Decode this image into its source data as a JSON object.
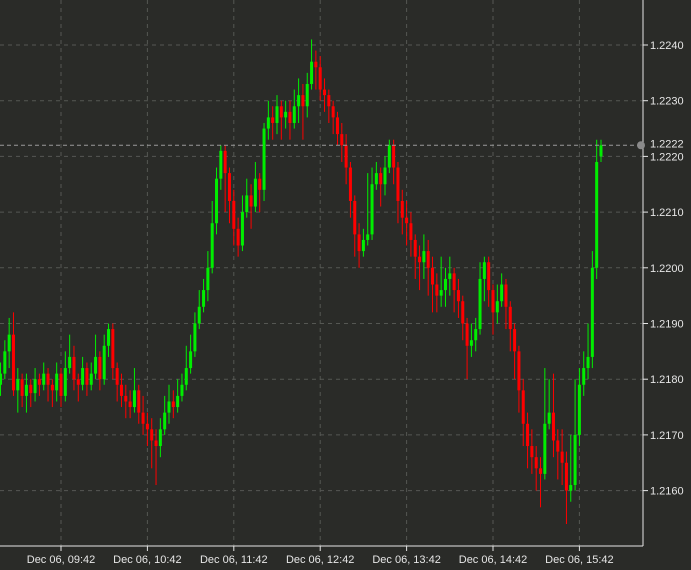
{
  "chart_data": {
    "type": "candlestick",
    "title": "",
    "xlabel": "",
    "ylabel": "",
    "x_start": "Dec 06, 09:00",
    "interval_minutes": 3,
    "ylim": [
      1.215,
      1.2248
    ],
    "grid": true,
    "y_ticks": [
      "1.2160",
      "1.2170",
      "1.2180",
      "1.2190",
      "1.2200",
      "1.2210",
      "1.2220",
      "1.2230",
      "1.2240"
    ],
    "x_ticks": [
      {
        "label": "Dec 06, 09:42",
        "minutes": 42
      },
      {
        "label": "Dec 06, 10:42",
        "minutes": 102
      },
      {
        "label": "Dec 06, 11:42",
        "minutes": 162
      },
      {
        "label": "Dec 06, 12:42",
        "minutes": 222
      },
      {
        "label": "Dec 06, 13:42",
        "minutes": 282
      },
      {
        "label": "Dec 06, 14:42",
        "minutes": 342
      },
      {
        "label": "Dec 06, 15:42",
        "minutes": 402
      }
    ],
    "current_price": {
      "value": 1.2222,
      "label": "1.2222"
    },
    "colors": {
      "up": "#00ee00",
      "down": "#ff0000",
      "background": "#2a2b28",
      "grid": "#555753",
      "axis": "#e6e6e6",
      "current_marker": "#8a8a8a"
    },
    "ohlc": [
      [
        1.2179,
        1.2183,
        1.2177,
        1.2181
      ],
      [
        1.2181,
        1.2187,
        1.218,
        1.2185
      ],
      [
        1.2185,
        1.2191,
        1.2182,
        1.2188
      ],
      [
        1.2188,
        1.2192,
        1.2177,
        1.2178
      ],
      [
        1.2178,
        1.2182,
        1.2174,
        1.218
      ],
      [
        1.218,
        1.2181,
        1.2175,
        1.2177
      ],
      [
        1.2177,
        1.2181,
        1.2174,
        1.2179
      ],
      [
        1.2179,
        1.218,
        1.2175,
        1.21775
      ],
      [
        1.21775,
        1.2182,
        1.2176,
        1.218
      ],
      [
        1.218,
        1.2181,
        1.2177,
        1.2179
      ],
      [
        1.2179,
        1.2183,
        1.2178,
        1.2181
      ],
      [
        1.2181,
        1.2182,
        1.2176,
        1.2179
      ],
      [
        1.2179,
        1.218,
        1.2175,
        1.2178
      ],
      [
        1.2178,
        1.2183,
        1.2176,
        1.2181
      ],
      [
        1.2181,
        1.2182,
        1.2175,
        1.2177
      ],
      [
        1.2177,
        1.2185,
        1.2176,
        1.2182
      ],
      [
        1.2182,
        1.2188,
        1.2181,
        1.2184
      ],
      [
        1.2184,
        1.2186,
        1.2178,
        1.218
      ],
      [
        1.218,
        1.2181,
        1.2176,
        1.2179
      ],
      [
        1.2179,
        1.2184,
        1.2178,
        1.2182
      ],
      [
        1.2182,
        1.2183,
        1.2177,
        1.2179
      ],
      [
        1.2179,
        1.2183,
        1.2178,
        1.2181
      ],
      [
        1.2181,
        1.2188,
        1.218,
        1.2184
      ],
      [
        1.2184,
        1.2185,
        1.2178,
        1.218
      ],
      [
        1.218,
        1.2188,
        1.2179,
        1.2186
      ],
      [
        1.2186,
        1.219,
        1.2184,
        1.2189
      ],
      [
        1.2189,
        1.219,
        1.218,
        1.2182
      ],
      [
        1.2182,
        1.2183,
        1.2176,
        1.2179
      ],
      [
        1.2179,
        1.2181,
        1.2175,
        1.2177
      ],
      [
        1.2177,
        1.2179,
        1.2173,
        1.2176
      ],
      [
        1.2176,
        1.2178,
        1.2173,
        1.2175
      ],
      [
        1.2175,
        1.2182,
        1.2174,
        1.2178
      ],
      [
        1.2178,
        1.2179,
        1.2172,
        1.2174
      ],
      [
        1.2174,
        1.2177,
        1.217,
        1.2172
      ],
      [
        1.2172,
        1.2174,
        1.2168,
        1.2171
      ],
      [
        1.2171,
        1.2173,
        1.2164,
        1.2169
      ],
      [
        1.2169,
        1.2171,
        1.2161,
        1.2168
      ],
      [
        1.2168,
        1.2173,
        1.2166,
        1.2171
      ],
      [
        1.2171,
        1.2177,
        1.217,
        1.2174
      ],
      [
        1.2174,
        1.2179,
        1.2172,
        1.2176
      ],
      [
        1.2176,
        1.2178,
        1.2173,
        1.2175
      ],
      [
        1.2175,
        1.218,
        1.2174,
        1.2177
      ],
      [
        1.2177,
        1.2181,
        1.2176,
        1.2179
      ],
      [
        1.2179,
        1.2186,
        1.2178,
        1.2182
      ],
      [
        1.2182,
        1.2188,
        1.2181,
        1.2185
      ],
      [
        1.2185,
        1.2192,
        1.2184,
        1.219
      ],
      [
        1.219,
        1.2196,
        1.2189,
        1.2193
      ],
      [
        1.2193,
        1.2198,
        1.2192,
        1.2196
      ],
      [
        1.2196,
        1.2203,
        1.2194,
        1.22
      ],
      [
        1.22,
        1.2212,
        1.2199,
        1.2208
      ],
      [
        1.2208,
        1.2218,
        1.2206,
        1.2216
      ],
      [
        1.2216,
        1.2222,
        1.2214,
        1.2221
      ],
      [
        1.2221,
        1.2222,
        1.221,
        1.2217
      ],
      [
        1.2217,
        1.2218,
        1.2208,
        1.2212
      ],
      [
        1.2212,
        1.2214,
        1.2204,
        1.2207
      ],
      [
        1.2207,
        1.2209,
        1.2202,
        1.2204
      ],
      [
        1.2204,
        1.2213,
        1.2203,
        1.221
      ],
      [
        1.221,
        1.2216,
        1.2209,
        1.2213
      ],
      [
        1.2213,
        1.2215,
        1.2207,
        1.2211
      ],
      [
        1.2211,
        1.2219,
        1.221,
        1.2216
      ],
      [
        1.2216,
        1.2217,
        1.221,
        1.2214
      ],
      [
        1.2214,
        1.2226,
        1.2212,
        1.2225
      ],
      [
        1.2225,
        1.223,
        1.2223,
        1.2227
      ],
      [
        1.2227,
        1.2229,
        1.2223,
        1.2226
      ],
      [
        1.2226,
        1.2231,
        1.2224,
        1.2229
      ],
      [
        1.2229,
        1.223,
        1.2223,
        1.2227
      ],
      [
        1.2227,
        1.223,
        1.2225,
        1.2228
      ],
      [
        1.2228,
        1.223,
        1.2223,
        1.2226
      ],
      [
        1.2226,
        1.2232,
        1.2225,
        1.2229
      ],
      [
        1.2229,
        1.2234,
        1.2226,
        1.2231
      ],
      [
        1.2231,
        1.2233,
        1.2223,
        1.2229
      ],
      [
        1.2229,
        1.2235,
        1.2227,
        1.2233
      ],
      [
        1.2233,
        1.2241,
        1.2232,
        1.2237
      ],
      [
        1.2237,
        1.2239,
        1.2232,
        1.2236
      ],
      [
        1.2236,
        1.2238,
        1.223,
        1.2232
      ],
      [
        1.2232,
        1.2234,
        1.2228,
        1.2231
      ],
      [
        1.2231,
        1.2232,
        1.2226,
        1.2229
      ],
      [
        1.2229,
        1.223,
        1.2224,
        1.2227
      ],
      [
        1.2227,
        1.2228,
        1.2222,
        1.2224
      ],
      [
        1.2224,
        1.2226,
        1.2219,
        1.2222
      ],
      [
        1.2222,
        1.2224,
        1.2215,
        1.2218
      ],
      [
        1.2218,
        1.2219,
        1.2209,
        1.2212
      ],
      [
        1.2212,
        1.2213,
        1.2202,
        1.2206
      ],
      [
        1.2206,
        1.2208,
        1.22,
        1.2203
      ],
      [
        1.2203,
        1.2207,
        1.2202,
        1.2205
      ],
      [
        1.2205,
        1.2217,
        1.2204,
        1.2206
      ],
      [
        1.2206,
        1.2218,
        1.2205,
        1.2215
      ],
      [
        1.2215,
        1.2219,
        1.2214,
        1.2217
      ],
      [
        1.2217,
        1.2218,
        1.2211,
        1.2215
      ],
      [
        1.2215,
        1.222,
        1.2213,
        1.2218
      ],
      [
        1.2218,
        1.2223,
        1.2217,
        1.2222
      ],
      [
        1.2222,
        1.2223,
        1.2215,
        1.2218
      ],
      [
        1.2218,
        1.2219,
        1.2208,
        1.2212
      ],
      [
        1.2212,
        1.2214,
        1.2206,
        1.2209
      ],
      [
        1.2209,
        1.2212,
        1.2204,
        1.2208
      ],
      [
        1.2208,
        1.221,
        1.2202,
        1.2205
      ],
      [
        1.2205,
        1.2206,
        1.2198,
        1.2202
      ],
      [
        1.2202,
        1.2204,
        1.2196,
        1.2201
      ],
      [
        1.2201,
        1.2206,
        1.2198,
        1.2203
      ],
      [
        1.2203,
        1.2205,
        1.2195,
        1.22
      ],
      [
        1.22,
        1.2202,
        1.2192,
        1.2197
      ],
      [
        1.2197,
        1.2199,
        1.2192,
        1.2195
      ],
      [
        1.2195,
        1.2202,
        1.2193,
        1.2196
      ],
      [
        1.2196,
        1.22,
        1.2193,
        1.2198
      ],
      [
        1.2198,
        1.2202,
        1.2195,
        1.2199
      ],
      [
        1.2199,
        1.22,
        1.2192,
        1.2196
      ],
      [
        1.2196,
        1.2198,
        1.2191,
        1.2194
      ],
      [
        1.2194,
        1.2195,
        1.2187,
        1.219
      ],
      [
        1.219,
        1.2191,
        1.218,
        1.2186
      ],
      [
        1.2186,
        1.219,
        1.2184,
        1.2187
      ],
      [
        1.2187,
        1.2191,
        1.2185,
        1.2189
      ],
      [
        1.2189,
        1.2201,
        1.2188,
        1.2198
      ],
      [
        1.2198,
        1.2202,
        1.2194,
        1.2201
      ],
      [
        1.2201,
        1.2202,
        1.2193,
        1.2196
      ],
      [
        1.2196,
        1.2197,
        1.2188,
        1.2192
      ],
      [
        1.2192,
        1.2197,
        1.219,
        1.2194
      ],
      [
        1.2194,
        1.2199,
        1.2193,
        1.2197
      ],
      [
        1.2197,
        1.2198,
        1.2189,
        1.2193
      ],
      [
        1.2193,
        1.2194,
        1.2185,
        1.2189
      ],
      [
        1.2189,
        1.219,
        1.218,
        1.2185
      ],
      [
        1.2185,
        1.2186,
        1.2174,
        1.2178
      ],
      [
        1.2178,
        1.218,
        1.2168,
        1.2172
      ],
      [
        1.2172,
        1.2174,
        1.2164,
        1.2168
      ],
      [
        1.2168,
        1.2171,
        1.2163,
        1.2166
      ],
      [
        1.2166,
        1.2168,
        1.216,
        1.2164
      ],
      [
        1.2164,
        1.2166,
        1.2157,
        1.2163
      ],
      [
        1.2163,
        1.2182,
        1.2162,
        1.2172
      ],
      [
        1.2172,
        1.218,
        1.2171,
        1.2174
      ],
      [
        1.2174,
        1.2181,
        1.2166,
        1.2169
      ],
      [
        1.2169,
        1.2171,
        1.2162,
        1.2167
      ],
      [
        1.2167,
        1.2171,
        1.2161,
        1.2165
      ],
      [
        1.2165,
        1.2167,
        1.2154,
        1.216
      ],
      [
        1.216,
        1.217,
        1.2158,
        1.2161
      ],
      [
        1.2161,
        1.218,
        1.216,
        1.217
      ],
      [
        1.217,
        1.2182,
        1.2168,
        1.2179
      ],
      [
        1.2179,
        1.2185,
        1.2177,
        1.2182
      ],
      [
        1.2182,
        1.219,
        1.218,
        1.2184
      ],
      [
        1.2184,
        1.2203,
        1.2182,
        1.22
      ],
      [
        1.22,
        1.2223,
        1.2198,
        1.2219
      ],
      [
        1.222,
        1.2223,
        1.2219,
        1.2222
      ]
    ]
  }
}
